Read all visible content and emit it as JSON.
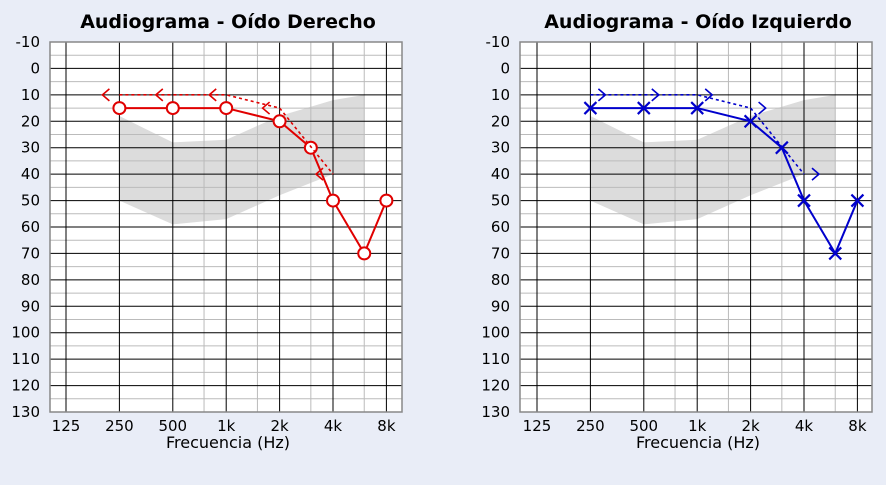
{
  "chart_data": [
    {
      "type": "line",
      "title": "Audiograma - Oído Derecho",
      "xlabel": "Frecuencia (Hz)",
      "ylabel": "",
      "x_scale": "log2",
      "y_inverted": true,
      "ylim": [
        -10,
        130
      ],
      "x_ticks": [
        125,
        250,
        500,
        1000,
        2000,
        4000,
        8000
      ],
      "x_tick_labels": [
        "125",
        "250",
        "500",
        "1k",
        "2k",
        "4k",
        "8k"
      ],
      "y_ticks": [
        -10,
        0,
        10,
        20,
        30,
        40,
        50,
        60,
        70,
        80,
        90,
        100,
        110,
        120,
        130
      ],
      "y_tick_labels": [
        "-10",
        "0",
        "10",
        "20",
        "30",
        "40",
        "50",
        "60",
        "70",
        "80",
        "90",
        "100",
        "110",
        "120",
        "130"
      ],
      "grid": true,
      "color": "#e00000",
      "speech_banana": {
        "upper": [
          [
            250,
            18
          ],
          [
            500,
            28
          ],
          [
            1000,
            27
          ],
          [
            2000,
            18
          ],
          [
            4000,
            12
          ],
          [
            6000,
            10
          ]
        ],
        "lower": [
          [
            6000,
            40
          ],
          [
            4000,
            40
          ],
          [
            2000,
            48
          ],
          [
            1000,
            57
          ],
          [
            500,
            59
          ],
          [
            250,
            50
          ]
        ]
      },
      "series": [
        {
          "marker": "circle",
          "style": "solid",
          "points": [
            [
              250,
              15
            ],
            [
              500,
              15
            ],
            [
              1000,
              15
            ],
            [
              2000,
              20
            ],
            [
              3000,
              30
            ],
            [
              4000,
              50
            ],
            [
              6000,
              70
            ],
            [
              8000,
              50
            ]
          ]
        },
        {
          "marker": "chevron-left",
          "style": "dotted",
          "points": [
            [
              250,
              10
            ],
            [
              500,
              10
            ],
            [
              1000,
              10
            ],
            [
              2000,
              15
            ],
            [
              4000,
              40
            ]
          ]
        }
      ]
    },
    {
      "type": "line",
      "title": "Audiograma - Oído Izquierdo",
      "xlabel": "Frecuencia (Hz)",
      "ylabel": "",
      "x_scale": "log2",
      "y_inverted": true,
      "ylim": [
        -10,
        130
      ],
      "x_ticks": [
        125,
        250,
        500,
        1000,
        2000,
        4000,
        8000
      ],
      "x_tick_labels": [
        "125",
        "250",
        "500",
        "1k",
        "2k",
        "4k",
        "8k"
      ],
      "y_ticks": [
        -10,
        0,
        10,
        20,
        30,
        40,
        50,
        60,
        70,
        80,
        90,
        100,
        110,
        120,
        130
      ],
      "y_tick_labels": [
        "-10",
        "0",
        "10",
        "20",
        "30",
        "40",
        "50",
        "60",
        "70",
        "80",
        "90",
        "100",
        "110",
        "120",
        "130"
      ],
      "grid": true,
      "color": "#0000cc",
      "speech_banana": {
        "upper": [
          [
            250,
            18
          ],
          [
            500,
            28
          ],
          [
            1000,
            27
          ],
          [
            2000,
            18
          ],
          [
            4000,
            12
          ],
          [
            6000,
            10
          ]
        ],
        "lower": [
          [
            6000,
            40
          ],
          [
            4000,
            40
          ],
          [
            2000,
            48
          ],
          [
            1000,
            57
          ],
          [
            500,
            59
          ],
          [
            250,
            50
          ]
        ]
      },
      "series": [
        {
          "marker": "cross",
          "style": "solid",
          "points": [
            [
              250,
              15
            ],
            [
              500,
              15
            ],
            [
              1000,
              15
            ],
            [
              2000,
              20
            ],
            [
              3000,
              30
            ],
            [
              4000,
              50
            ],
            [
              6000,
              70
            ],
            [
              8000,
              50
            ]
          ]
        },
        {
          "marker": "chevron-right",
          "style": "dotted",
          "points": [
            [
              250,
              10
            ],
            [
              500,
              10
            ],
            [
              1000,
              10
            ],
            [
              2000,
              15
            ],
            [
              4000,
              40
            ]
          ]
        }
      ]
    }
  ]
}
